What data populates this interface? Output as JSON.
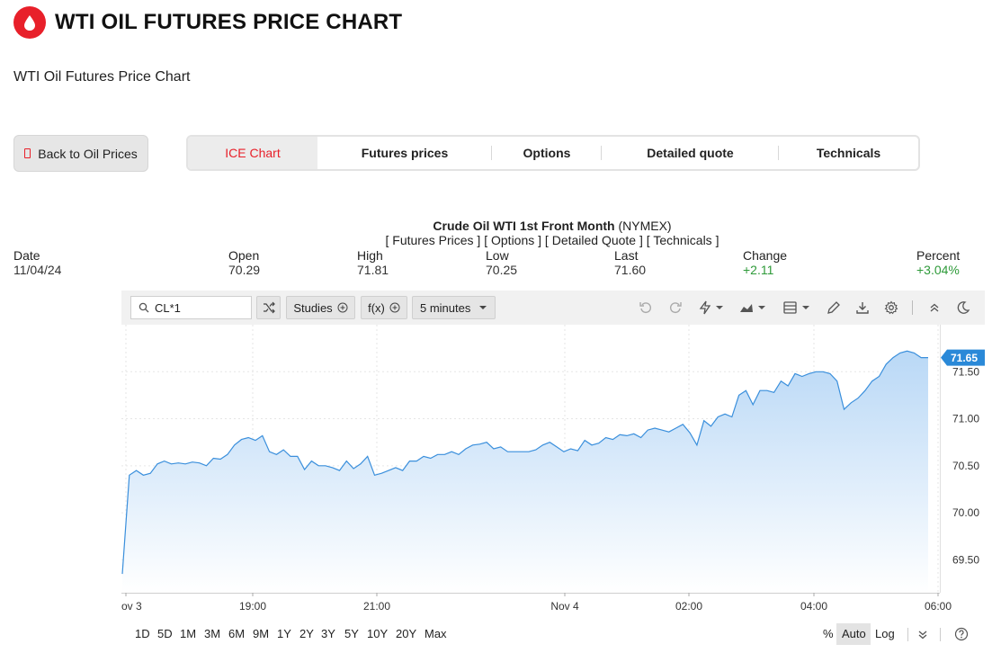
{
  "header": {
    "title": "WTI OIL FUTURES PRICE CHART",
    "subtitle": "WTI Oil Futures Price Chart",
    "brand_color": "#e8202a",
    "logo_icon": "oil-drop-icon"
  },
  "back_button": {
    "label": "Back to Oil Prices",
    "icon": "back-icon"
  },
  "tabs": [
    {
      "label": "ICE Chart",
      "active": true
    },
    {
      "label": "Futures prices",
      "active": false
    },
    {
      "label": "Options",
      "active": false
    },
    {
      "label": "Detailed quote",
      "active": false
    },
    {
      "label": "Technicals",
      "active": false
    }
  ],
  "quote": {
    "title_bold": "Crude Oil WTI 1st Front Month",
    "title_exchange": " (NYMEX)",
    "links": [
      "Futures Prices",
      "Options",
      "Detailed Quote",
      "Technicals"
    ]
  },
  "stats": [
    {
      "label": "Date",
      "value": "11/04/24"
    },
    {
      "label": "Open",
      "value": "70.29"
    },
    {
      "label": "High",
      "value": "71.81"
    },
    {
      "label": "Low",
      "value": "70.25"
    },
    {
      "label": "Last",
      "value": "71.60"
    },
    {
      "label": "Change",
      "value": "+2.11",
      "color": "#2e9a39"
    },
    {
      "label": "Percent",
      "value": "+3.04%",
      "color": "#2e9a39"
    }
  ],
  "toolbar": {
    "symbol": "CL*1",
    "studies_label": "Studies",
    "fx_label": "f(x)",
    "interval_label": "5 minutes"
  },
  "range_buttons": [
    "1D",
    "5D",
    "1M",
    "3M",
    "6M",
    "9M",
    "1Y",
    "2Y",
    "3Y",
    "5Y",
    "10Y",
    "20Y",
    "Max"
  ],
  "scale_controls": {
    "percent": "%",
    "auto": "Auto",
    "log": "Log"
  },
  "chart_data": {
    "type": "area",
    "x_ticks": [
      "ov 3",
      "19:00",
      "21:00",
      "Nov 4",
      "02:00",
      "04:00",
      "06:00"
    ],
    "y_ticks": [
      69.5,
      70.0,
      70.5,
      71.0,
      71.5
    ],
    "y_tick_labels": [
      "69.50",
      "70.00",
      "70.50",
      "71.00",
      "71.50"
    ],
    "ylim": [
      69.15,
      72.0
    ],
    "last_price_label": "71.65",
    "line_color": "#3a8fdc",
    "values": [
      69.35,
      70.4,
      70.45,
      70.4,
      70.42,
      70.52,
      70.55,
      70.52,
      70.53,
      70.52,
      70.54,
      70.53,
      70.5,
      70.58,
      70.57,
      70.62,
      70.72,
      70.78,
      70.8,
      70.77,
      70.82,
      70.65,
      70.62,
      70.67,
      70.6,
      70.6,
      70.46,
      70.55,
      70.5,
      70.5,
      70.48,
      70.45,
      70.55,
      70.47,
      70.52,
      70.6,
      70.4,
      70.42,
      70.45,
      70.48,
      70.45,
      70.55,
      70.55,
      70.6,
      70.58,
      70.62,
      70.62,
      70.65,
      70.62,
      70.68,
      70.72,
      70.73,
      70.75,
      70.68,
      70.7,
      70.65,
      70.65,
      70.65,
      70.65,
      70.67,
      70.72,
      70.75,
      70.7,
      70.65,
      70.68,
      70.66,
      70.77,
      70.72,
      70.74,
      70.8,
      70.78,
      70.83,
      70.82,
      70.84,
      70.8,
      70.88,
      70.9,
      70.88,
      70.86,
      70.9,
      70.94,
      70.85,
      70.72,
      70.98,
      70.92,
      71.02,
      71.05,
      71.02,
      71.25,
      71.3,
      71.15,
      71.3,
      71.3,
      71.28,
      71.4,
      71.35,
      71.48,
      71.45,
      71.48,
      71.5,
      71.5,
      71.48,
      71.4,
      71.1,
      71.17,
      71.22,
      71.3,
      71.4,
      71.45,
      71.58,
      71.65,
      71.7,
      71.72,
      71.7,
      71.65,
      71.65
    ]
  }
}
